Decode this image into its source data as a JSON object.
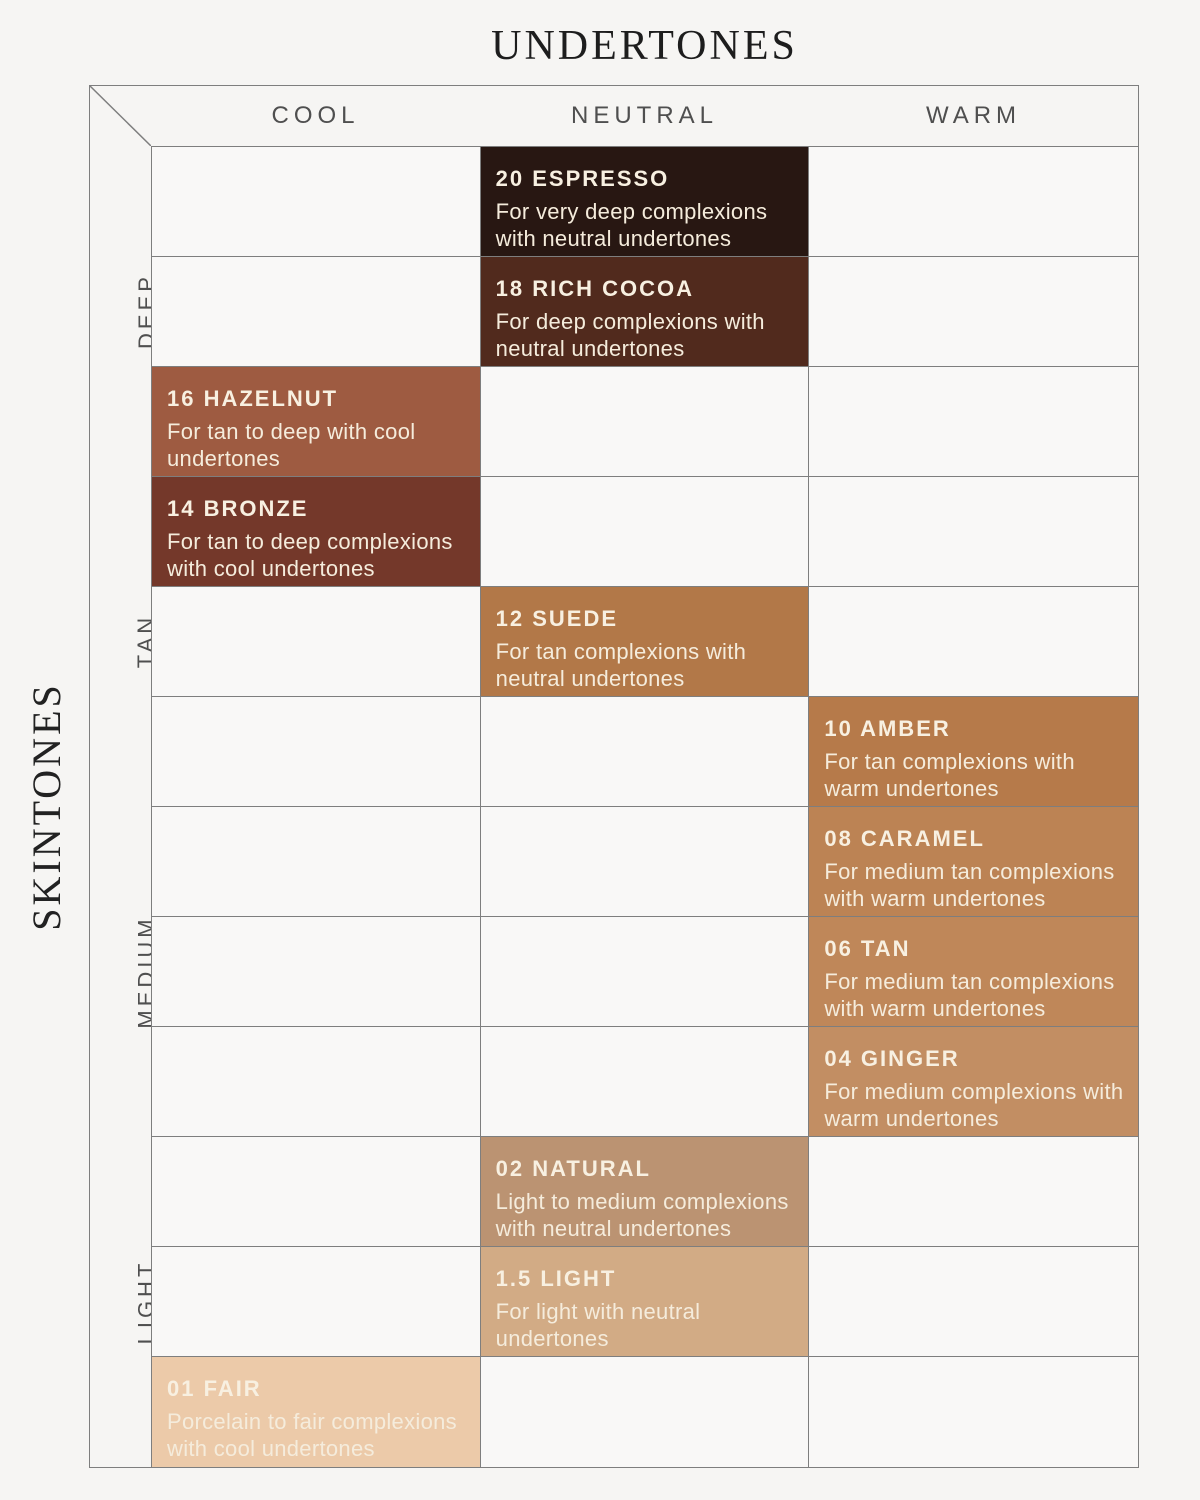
{
  "title": "UNDERTONES",
  "side_title": "SKINTONES",
  "columns": [
    {
      "id": "cool",
      "label": "COOL"
    },
    {
      "id": "neutral",
      "label": "NEUTRAL"
    },
    {
      "id": "warm",
      "label": "WARM"
    }
  ],
  "row_groups": [
    {
      "id": "deep",
      "label": "DEEP"
    },
    {
      "id": "tan",
      "label": "TAN"
    },
    {
      "id": "medium",
      "label": "MEDIUM"
    },
    {
      "id": "light",
      "label": "LIGHT"
    }
  ],
  "colors": {
    "page_bg": "#f6f5f3",
    "empty_cell_bg": "#f9f8f7",
    "grid_line": "#7e7e7e",
    "title_text": "#1d1d1d",
    "header_text": "#4f4f4f",
    "shade_name_text": "#f8f0e1",
    "shade_desc_text": "#f5ecdc"
  },
  "chart_data": {
    "type": "table",
    "title": "UNDERTONES",
    "ylabel": "SKINTONES",
    "rows": 12,
    "cols": 3,
    "shades": [
      {
        "name": "20 ESPRESSO",
        "desc": "For very deep complexions with neutral undertones",
        "row": 1,
        "column": "neutral",
        "skintone_group": "DEEP",
        "color": "#281712"
      },
      {
        "name": "18 RICH COCOA",
        "desc": "For deep complexions with neutral undertones",
        "row": 2,
        "column": "neutral",
        "skintone_group": "DEEP",
        "color": "#512a1d"
      },
      {
        "name": "16 HAZELNUT",
        "desc": "For tan to deep with cool undertones",
        "row": 3,
        "column": "cool",
        "skintone_group": "DEEP",
        "color": "#9e5b41"
      },
      {
        "name": "14 BRONZE",
        "desc": "For tan to deep complexions with cool undertones",
        "row": 4,
        "column": "cool",
        "skintone_group": "TAN",
        "color": "#74382a"
      },
      {
        "name": "12 SUEDE",
        "desc": "For tan complexions with neutral undertones",
        "row": 5,
        "column": "neutral",
        "skintone_group": "TAN",
        "color": "#b27848"
      },
      {
        "name": "10 AMBER",
        "desc": "For tan complexions with warm undertones",
        "row": 6,
        "column": "warm",
        "skintone_group": "TAN",
        "color": "#b67a4a"
      },
      {
        "name": "08 CARAMEL",
        "desc": "For medium tan complexions with warm undertones",
        "row": 7,
        "column": "warm",
        "skintone_group": "MEDIUM",
        "color": "#bc8354"
      },
      {
        "name": "06 TAN",
        "desc": "For medium tan complexions with warm undertones",
        "row": 8,
        "column": "warm",
        "skintone_group": "MEDIUM",
        "color": "#bf8759"
      },
      {
        "name": "04 GINGER",
        "desc": "For medium complexions with warm undertones",
        "row": 9,
        "column": "warm",
        "skintone_group": "MEDIUM",
        "color": "#c28e63"
      },
      {
        "name": "02 NATURAL",
        "desc": "Light to medium complexions with neutral undertones",
        "row": 10,
        "column": "neutral",
        "skintone_group": "LIGHT",
        "color": "#bb9372"
      },
      {
        "name": "1.5 LIGHT",
        "desc": "For light with neutral undertones",
        "row": 11,
        "column": "neutral",
        "skintone_group": "LIGHT",
        "color": "#d2ab85"
      },
      {
        "name": "01 FAIR",
        "desc": "Porcelain to fair complexions with cool undertones",
        "row": 12,
        "column": "cool",
        "skintone_group": "LIGHT",
        "color": "#eccaa9"
      }
    ]
  }
}
